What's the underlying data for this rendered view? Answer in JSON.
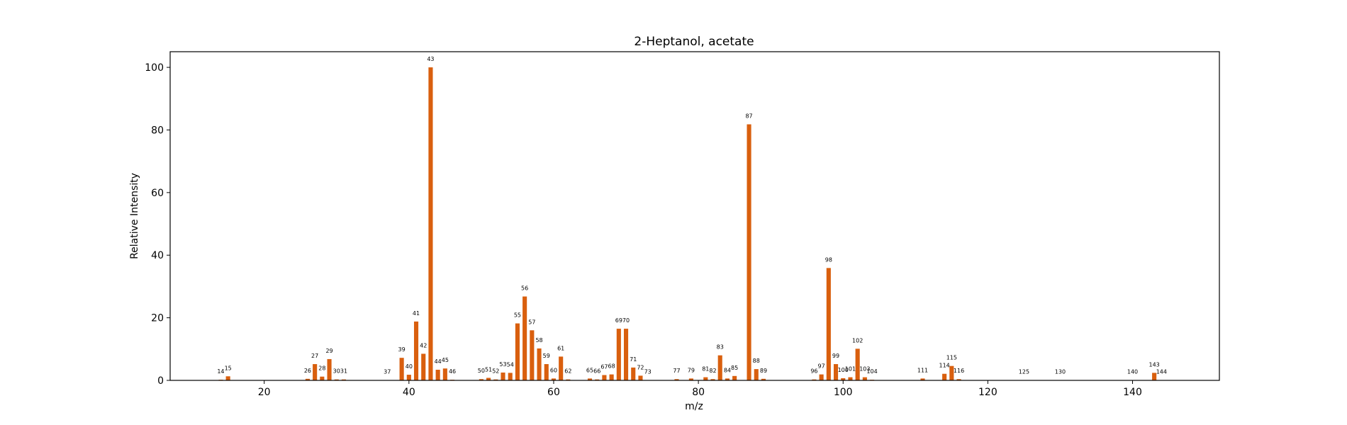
{
  "chart_data": {
    "type": "bar",
    "title": "2-Heptanol, acetate",
    "xlabel": "m/z",
    "ylabel": "Relative Intensity",
    "xlim": [
      7,
      152
    ],
    "ylim": [
      0,
      105
    ],
    "xticks": [
      20,
      40,
      60,
      80,
      100,
      120,
      140
    ],
    "yticks": [
      0,
      20,
      40,
      60,
      80,
      100
    ],
    "bar_color": "#d95f0e",
    "grid": false,
    "x": [
      14,
      15,
      26,
      27,
      28,
      29,
      30,
      31,
      37,
      39,
      40,
      41,
      42,
      43,
      44,
      45,
      46,
      50,
      51,
      52,
      53,
      54,
      55,
      56,
      57,
      58,
      59,
      60,
      61,
      62,
      65,
      66,
      67,
      68,
      69,
      70,
      71,
      72,
      73,
      77,
      79,
      81,
      82,
      83,
      84,
      85,
      87,
      88,
      89,
      96,
      97,
      98,
      99,
      100,
      101,
      102,
      103,
      104,
      111,
      114,
      115,
      116,
      125,
      130,
      140,
      143,
      144
    ],
    "values": [
      0.2,
      1.3,
      0.5,
      5.2,
      1.2,
      6.8,
      0.3,
      0.3,
      0.1,
      7.2,
      1.8,
      18.8,
      8.5,
      100,
      3.4,
      3.8,
      0.2,
      0.4,
      0.8,
      0.3,
      2.5,
      2.4,
      18.2,
      26.8,
      16.0,
      10.2,
      5.2,
      0.6,
      7.6,
      0.3,
      0.6,
      0.3,
      1.7,
      1.9,
      16.5,
      16.5,
      4.1,
      1.5,
      0.1,
      0.4,
      0.6,
      1.0,
      0.4,
      8.0,
      0.6,
      1.4,
      81.8,
      3.6,
      0.5,
      0.3,
      1.9,
      35.9,
      5.2,
      0.7,
      1.0,
      10.1,
      1.0,
      0.2,
      0.6,
      2.1,
      4.6,
      0.4,
      0.1,
      0.1,
      0.1,
      2.4,
      0.1
    ]
  }
}
